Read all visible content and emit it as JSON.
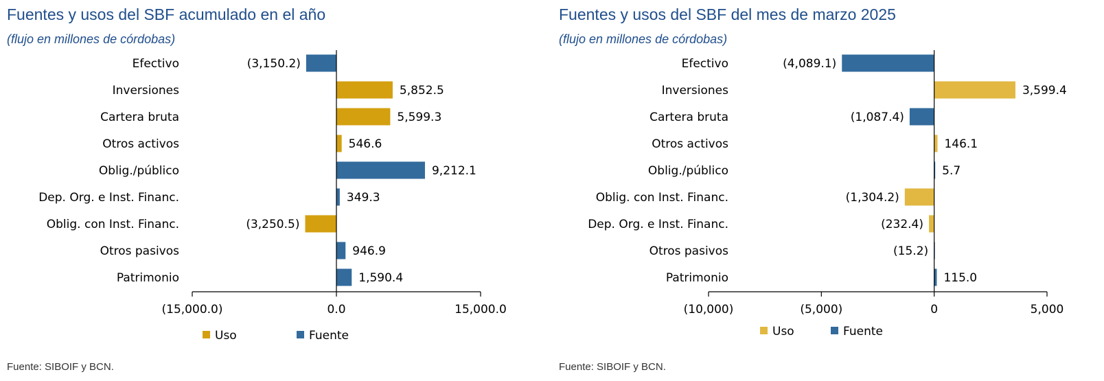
{
  "charts": [
    {
      "title": "Fuentes y usos del SBF acumulado en el año",
      "subtitle": "(flujo en millones de córdobas)",
      "source": "Fuente: SIBOIF y BCN."
    },
    {
      "title": "Fuentes y usos del SBF del mes de marzo 2025",
      "subtitle": "(flujo en millones de córdobas)",
      "source": "Fuente: SIBOIF y BCN."
    }
  ],
  "colors": {
    "uso_left": "#d4a010",
    "uso_right": "#e2b843",
    "fuente": "#336b9c",
    "axis": "#000000"
  },
  "chart_data": [
    {
      "type": "bar",
      "orientation": "horizontal",
      "title": "Fuentes y usos del SBF acumulado en el año",
      "xlim": [
        -15000,
        15000
      ],
      "xticks": [
        -15000,
        0,
        15000
      ],
      "xtick_labels": [
        "(15,000.0)",
        "0.0",
        "15,000.0"
      ],
      "legend": [
        "Uso",
        "Fuente"
      ],
      "legend_position": "bottom",
      "categories": [
        "Efectivo",
        "Inversiones",
        "Cartera bruta",
        "Otros activos",
        "Oblig./público",
        "Dep. Org. e Inst. Financ.",
        "Oblig. con Inst. Financ.",
        "Otros pasivos",
        "Patrimonio"
      ],
      "values": [
        -3150.2,
        5852.5,
        5599.3,
        546.6,
        9212.1,
        349.3,
        -3250.5,
        946.9,
        1590.4
      ],
      "value_labels": [
        "(3,150.2)",
        "5,852.5",
        "5,599.3",
        "546.6",
        "9,212.1",
        "349.3",
        "(3,250.5)",
        "946.9",
        "1,590.4"
      ],
      "series_type": [
        "Fuente",
        "Uso",
        "Uso",
        "Uso",
        "Fuente",
        "Fuente",
        "Uso",
        "Fuente",
        "Fuente"
      ]
    },
    {
      "type": "bar",
      "orientation": "horizontal",
      "title": "Fuentes y usos del SBF del mes de marzo 2025",
      "xlim": [
        -10000,
        5000
      ],
      "xticks": [
        -10000,
        -5000,
        0,
        5000
      ],
      "xtick_labels": [
        "(10,000)",
        "(5,000)",
        "0",
        "5,000"
      ],
      "legend": [
        "Uso",
        "Fuente"
      ],
      "legend_position": "bottom",
      "categories": [
        "Efectivo",
        "Inversiones",
        "Cartera bruta",
        "Otros activos",
        "Oblig./público",
        "Oblig. con Inst. Financ.",
        "Dep. Org. e Inst. Financ.",
        "Otros pasivos",
        "Patrimonio"
      ],
      "values": [
        -4089.1,
        3599.4,
        -1087.4,
        146.1,
        5.7,
        -1304.2,
        -232.4,
        -15.2,
        115.0
      ],
      "value_labels": [
        "(4,089.1)",
        "3,599.4",
        "(1,087.4)",
        "146.1",
        "5.7",
        "(1,304.2)",
        "(232.4)",
        "(15.2)",
        "115.0"
      ],
      "series_type": [
        "Fuente",
        "Uso",
        "Fuente",
        "Uso",
        "Fuente",
        "Uso",
        "Uso",
        "Fuente",
        "Fuente"
      ]
    }
  ]
}
